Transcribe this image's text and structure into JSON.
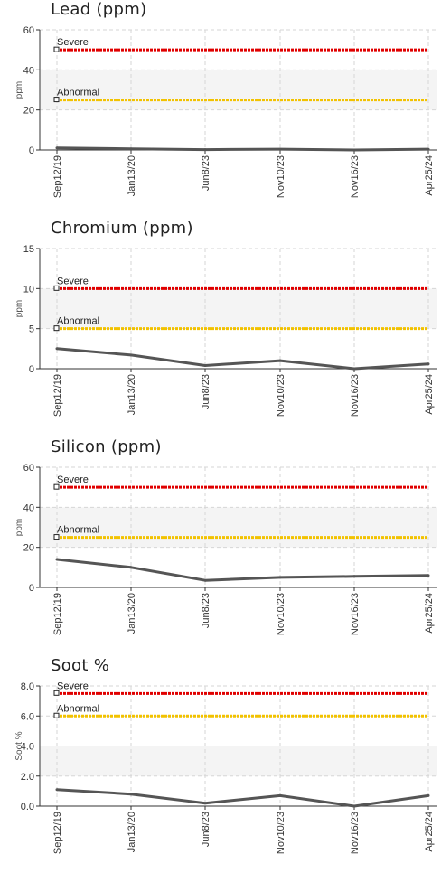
{
  "colors": {
    "severe": "#e00000",
    "abnormal": "#f2c200",
    "series": "#555555",
    "band": "#f4f4f4",
    "grid": "#d6d6d6",
    "axis": "#333333"
  },
  "chart_data": [
    {
      "type": "line",
      "title": "Lead (ppm)",
      "ylabel": "ppm",
      "categories": [
        "Sep12/19",
        "Jan13/20",
        "Jun8/23",
        "Nov10/23",
        "Nov16/23",
        "Apr25/24"
      ],
      "yticks": [
        "0",
        "20",
        "40",
        "60"
      ],
      "ylim": [
        0,
        60
      ],
      "series": [
        {
          "values": [
            1,
            0.6,
            0.2,
            0.4,
            0,
            0.4
          ]
        }
      ],
      "limits": [
        {
          "label": "Severe",
          "value": 50,
          "kind": "severe"
        },
        {
          "label": "Abnormal",
          "value": 25,
          "kind": "abnormal"
        }
      ],
      "bands": [
        [
          20,
          40
        ]
      ],
      "grid": true
    },
    {
      "type": "line",
      "title": "Chromium (ppm)",
      "ylabel": "ppm",
      "categories": [
        "Sep12/19",
        "Jan13/20",
        "Jun8/23",
        "Nov10/23",
        "Nov16/23",
        "Apr25/24"
      ],
      "yticks": [
        "0",
        "5",
        "10",
        "15"
      ],
      "ylim": [
        0,
        15
      ],
      "series": [
        {
          "values": [
            2.5,
            1.7,
            0.4,
            1.0,
            0,
            0.6
          ]
        }
      ],
      "limits": [
        {
          "label": "Severe",
          "value": 10,
          "kind": "severe"
        },
        {
          "label": "Abnormal",
          "value": 5,
          "kind": "abnormal"
        }
      ],
      "bands": [
        [
          5,
          10
        ]
      ],
      "grid": true
    },
    {
      "type": "line",
      "title": "Silicon (ppm)",
      "ylabel": "ppm",
      "categories": [
        "Sep12/19",
        "Jan13/20",
        "Jun8/23",
        "Nov10/23",
        "Nov16/23",
        "Apr25/24"
      ],
      "yticks": [
        "0",
        "20",
        "40",
        "60"
      ],
      "ylim": [
        0,
        60
      ],
      "series": [
        {
          "values": [
            14,
            10,
            3.5,
            5,
            5.5,
            6
          ]
        }
      ],
      "limits": [
        {
          "label": "Severe",
          "value": 50,
          "kind": "severe"
        },
        {
          "label": "Abnormal",
          "value": 25,
          "kind": "abnormal"
        }
      ],
      "bands": [
        [
          20,
          40
        ]
      ],
      "grid": true
    },
    {
      "type": "line",
      "title": "Soot %",
      "ylabel": "Soot %",
      "categories": [
        "Sep12/19",
        "Jan13/20",
        "Jun8/23",
        "Nov10/23",
        "Nov16/23",
        "Apr25/24"
      ],
      "yticks": [
        "0.0",
        "2.0",
        "4.0",
        "6.0",
        "8.0"
      ],
      "ylim": [
        0,
        8
      ],
      "series": [
        {
          "values": [
            1.1,
            0.8,
            0.2,
            0.7,
            0,
            0.7
          ]
        }
      ],
      "limits": [
        {
          "label": "Severe",
          "value": 7.5,
          "kind": "severe"
        },
        {
          "label": "Abnormal",
          "value": 6,
          "kind": "abnormal"
        }
      ],
      "bands": [
        [
          2,
          4
        ]
      ],
      "grid": true
    }
  ]
}
